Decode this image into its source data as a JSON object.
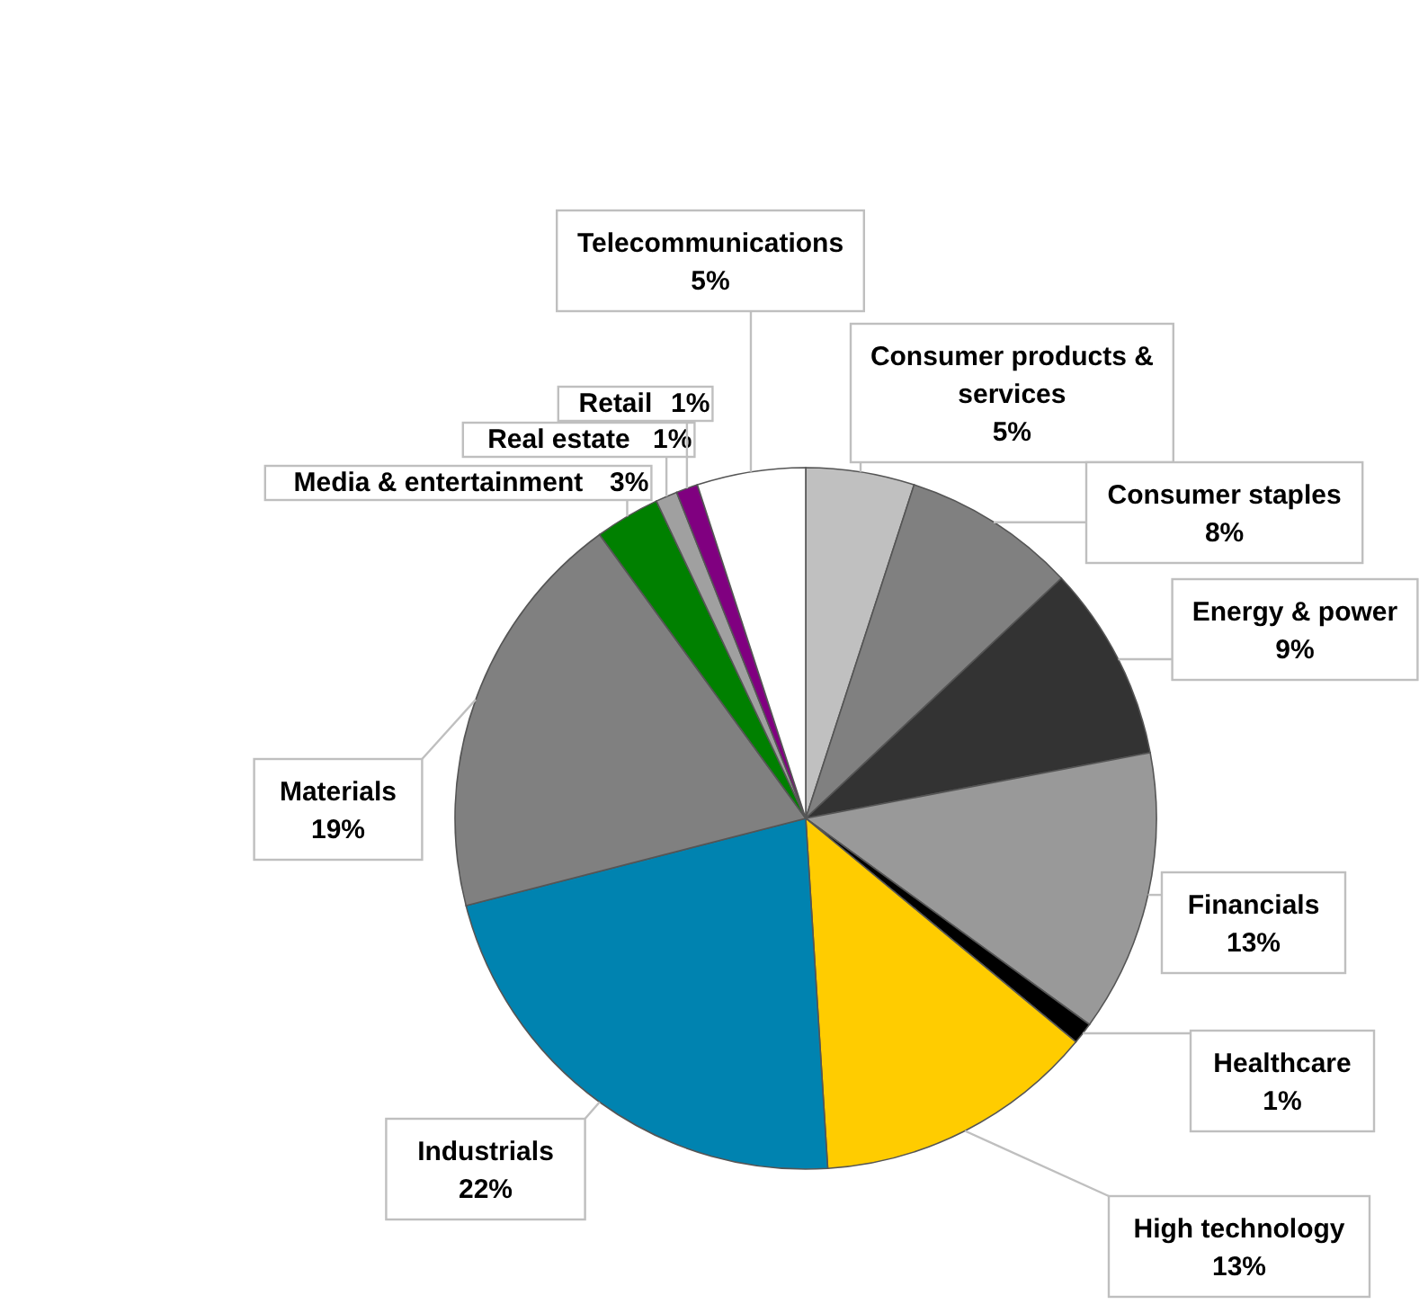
{
  "chart_data": {
    "type": "pie",
    "categories": [
      "Consumer products & services",
      "Consumer staples",
      "Energy & power",
      "Financials",
      "Healthcare",
      "High technology",
      "Industrials",
      "Materials",
      "Media & entertainment",
      "Real estate",
      "Retail",
      "Telecommunications"
    ],
    "values": [
      5,
      8,
      9,
      13,
      1,
      13,
      22,
      19,
      3,
      1,
      1,
      5
    ],
    "value_labels": [
      "5%",
      "8%",
      "9%",
      "13%",
      "1%",
      "13%",
      "22%",
      "19%",
      "3%",
      "1%",
      "1%",
      "5%"
    ],
    "colors": [
      "#c0c0c0",
      "#808080",
      "#333333",
      "#999999",
      "#000000",
      "#ffcc00",
      "#0083b0",
      "#808080",
      "#008000",
      "#a0a0a0",
      "#800080",
      "#ffffff"
    ],
    "legend": false
  }
}
